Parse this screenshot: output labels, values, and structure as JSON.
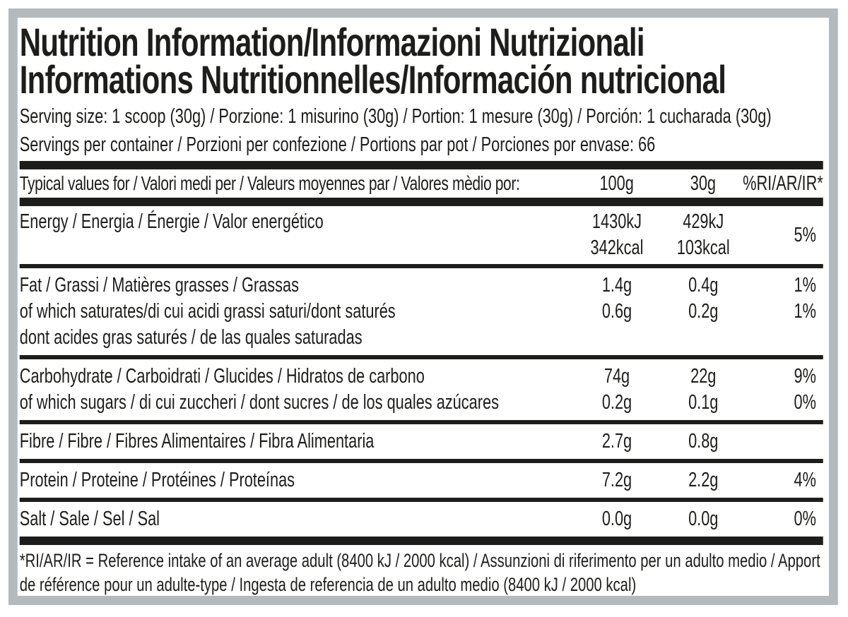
{
  "label": {
    "title_line1": "Nutrition Information/Informazioni Nutrizionali",
    "title_line2": "Informations Nutritionnelles/Información nutricional",
    "serving_size": "Serving size: 1 scoop (30g) / Porzione: 1 misurino (30g) / Portion: 1 mesure (30g) / Porción: 1 cucharada (30g)",
    "servings_per_container": "Servings per container / Porzioni per confezione / Portions par pot / Porciones por envase: 66",
    "footnote": "*RI/AR/IR = Reference intake of an average adult (8400 kJ / 2000 kcal)  / Assunzioni di riferimento per un adulto medio / Apport de référence pour un adulte-type / Ingesta de referencia de un adulto medio (8400 kJ / 2000 kcal)"
  },
  "colors": {
    "ink": "#1d1d1b",
    "frame_gray": "#b3b9bc",
    "background": "#ffffff"
  },
  "table": {
    "header": {
      "label": "Typical values for / Valori medi per / Valeurs moyennes par / Valores mèdio por:",
      "col_100g": "100g",
      "col_30g": "30g",
      "col_ri": "%RI/AR/IR*"
    },
    "energy": {
      "label": "Energy / Energia / Énergie / Valor energético",
      "kj_100": "1430kJ",
      "kcal_100": "342kcal",
      "kj_30": "429kJ",
      "kcal_30": "103kcal",
      "ri": "5%"
    },
    "rows": [
      {
        "name": "fat",
        "lines": [
          {
            "label": "Fat / Grassi / Matières grasses / Grassas",
            "v100": "1.4g",
            "v30": "0.4g",
            "ri": "1%"
          },
          {
            "label": "of which saturates/di cui acidi grassi saturi/dont saturés",
            "v100": "0.6g",
            "v30": "0.2g",
            "ri": "1%"
          },
          {
            "label": "dont acides gras saturés / de las quales saturadas",
            "v100": "",
            "v30": "",
            "ri": ""
          }
        ]
      },
      {
        "name": "carbohydrate",
        "lines": [
          {
            "label": "Carbohydrate / Carboidrati / Glucides / Hidratos de carbono",
            "v100": "74g",
            "v30": "22g",
            "ri": "9%"
          },
          {
            "label": "of which sugars / di cui zuccheri / dont sucres / de los quales azúcares",
            "v100": "0.2g",
            "v30": "0.1g",
            "ri": "0%"
          }
        ]
      },
      {
        "name": "fibre",
        "lines": [
          {
            "label": "Fibre / Fibre / Fibres Alimentaires / Fibra Alimentaria",
            "v100": "2.7g",
            "v30": "0.8g",
            "ri": ""
          }
        ]
      },
      {
        "name": "protein",
        "lines": [
          {
            "label": "Protein / Proteine / Protéines / Proteínas",
            "v100": "7.2g",
            "v30": "2.2g",
            "ri": "4%"
          }
        ]
      },
      {
        "name": "salt",
        "lines": [
          {
            "label": "Salt / Sale / Sel / Sal",
            "v100": "0.0g",
            "v30": "0.0g",
            "ri": "0%"
          }
        ]
      }
    ]
  }
}
